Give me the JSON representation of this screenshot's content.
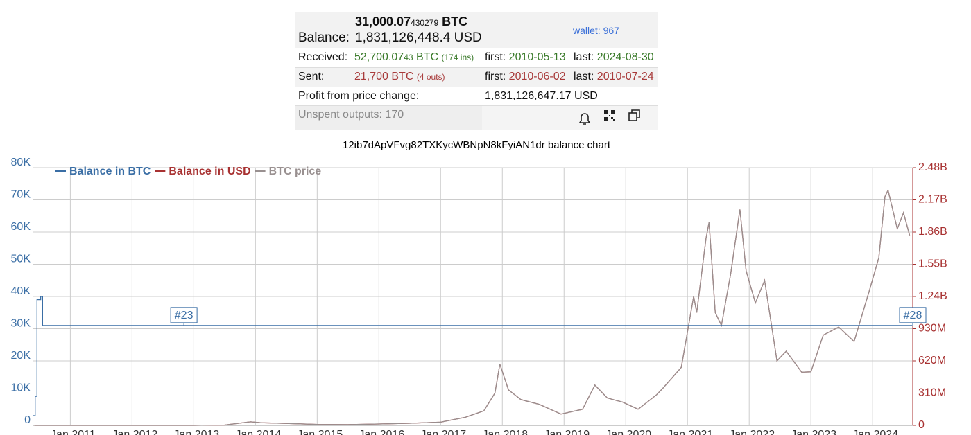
{
  "panel": {
    "balance_btc": "31,000.07",
    "balance_btc_small": "430279",
    "balance_btc_unit": "BTC",
    "balance_label": "Balance:",
    "balance_usd": "1,831,126,448.4 USD",
    "wallet": "wallet: 967",
    "received_label": "Received:",
    "received_btc": "52,700.07",
    "received_btc_small": "43",
    "received_btc_unit": "BTC",
    "received_ins": "(174 ins)",
    "received_first_label": "first:",
    "received_first": "2010-05-13",
    "received_last_label": "last:",
    "received_last": "2024-08-30",
    "sent_label": "Sent:",
    "sent_btc": "21,700 BTC",
    "sent_outs": "(4 outs)",
    "sent_first_label": "first:",
    "sent_first": "2010-06-02",
    "sent_last_label": "last:",
    "sent_last": "2010-07-24",
    "profit_label": "Profit from price change:",
    "profit_value": "1,831,126,647.17 USD",
    "unspent": "Unspent outputs: 170"
  },
  "chart_data": {
    "type": "line",
    "title": "12ib7dApVFvg82TXKycWBNpN8kFyiAN1dr balance chart",
    "xlim": [
      2010.4,
      2024.65
    ],
    "xticks": [
      {
        "value": 2011,
        "label": "Jan 2011"
      },
      {
        "value": 2012,
        "label": "Jan 2012"
      },
      {
        "value": 2013,
        "label": "Jan 2013"
      },
      {
        "value": 2014,
        "label": "Jan 2014"
      },
      {
        "value": 2015,
        "label": "Jan 2015"
      },
      {
        "value": 2016,
        "label": "Jan 2016"
      },
      {
        "value": 2017,
        "label": "Jan 2017"
      },
      {
        "value": 2018,
        "label": "Jan 2018"
      },
      {
        "value": 2019,
        "label": "Jan 2019"
      },
      {
        "value": 2020,
        "label": "Jan 2020"
      },
      {
        "value": 2021,
        "label": "Jan 2021"
      },
      {
        "value": 2022,
        "label": "Jan 2022"
      },
      {
        "value": 2023,
        "label": "Jan 2023"
      },
      {
        "value": 2024,
        "label": "Jan 2024"
      }
    ],
    "ylim": [
      0,
      80000
    ],
    "yticks": [
      0,
      {
        "value": 10000,
        "label": "10K"
      },
      {
        "value": 20000,
        "label": "20K"
      },
      {
        "value": 30000,
        "label": "30K"
      },
      {
        "value": 40000,
        "label": "40K"
      },
      {
        "value": 50000,
        "label": "50K"
      },
      {
        "value": 60000,
        "label": "60K"
      },
      {
        "value": 70000,
        "label": "70K"
      },
      {
        "value": 80000,
        "label": "80K"
      }
    ],
    "y2lim": [
      0,
      2480000000
    ],
    "y2ticks": [
      0,
      {
        "value": 310000000,
        "label": "310M"
      },
      {
        "value": 620000000,
        "label": "620M"
      },
      {
        "value": 930000000,
        "label": "930M"
      },
      {
        "value": 1240000000,
        "label": "1.24B"
      },
      {
        "value": 1550000000,
        "label": "1.55B"
      },
      {
        "value": 1860000000,
        "label": "1.86B"
      },
      {
        "value": 2170000000,
        "label": "2.17B"
      },
      {
        "value": 2480000000,
        "label": "2.48B"
      }
    ],
    "grid": true,
    "series": [
      {
        "name": "Balance in BTC",
        "color": "#3a6ea5",
        "step": true,
        "x": [
          2010.4,
          2010.43,
          2010.46,
          2010.52,
          2010.55,
          2024.64
        ],
        "values": [
          3000,
          9000,
          39000,
          40000,
          31000,
          31000
        ]
      },
      {
        "name": "Balance in USD",
        "color": "#a83232",
        "axis": "y2",
        "x": [
          2010.42,
          2013.0,
          2013.5,
          2013.92,
          2014.1,
          2014.5,
          2015.0,
          2015.5,
          2016.0,
          2016.5,
          2017.0,
          2017.4,
          2017.7,
          2017.88,
          2017.96,
          2018.1,
          2018.3,
          2018.6,
          2018.95,
          2019.3,
          2019.5,
          2019.7,
          2019.95,
          2020.2,
          2020.5,
          2020.6,
          2020.9,
          2021.0,
          2021.1,
          2021.15,
          2021.3,
          2021.35,
          2021.45,
          2021.55,
          2021.7,
          2021.85,
          2021.95,
          2022.1,
          2022.25,
          2022.45,
          2022.6,
          2022.85,
          2023.0,
          2023.2,
          2023.45,
          2023.7,
          2023.95,
          2024.1,
          2024.2,
          2024.25,
          2024.4,
          2024.5,
          2024.6
        ],
        "values": [
          0,
          403000,
          3100000,
          34100000,
          24800000,
          18600000,
          9300000,
          7750000,
          13330000,
          20150000,
          31000000,
          77500000,
          139500000,
          310000000,
          589000000,
          341000000,
          248000000,
          201500000,
          108500000,
          155000000,
          387500000,
          263500000,
          223200000,
          155000000,
          294500000,
          356500000,
          558000000,
          899000000,
          1240000000,
          1085000000,
          1798000000,
          1953000000,
          1085000000,
          961000000,
          1457000000,
          2077000000,
          1488000000,
          1178000000,
          1395000000,
          620000000,
          713000000,
          511500000,
          514600000,
          868000000,
          945500000,
          806000000,
          1302000000,
          1612000000,
          2201000000,
          2263000000,
          1891000000,
          2046000000,
          1829000000
        ]
      },
      {
        "name": "BTC price",
        "color": "#999090",
        "x": [
          2010.42,
          2013.0,
          2013.5,
          2013.92,
          2014.1,
          2014.5,
          2015.0,
          2015.5,
          2016.0,
          2016.5,
          2017.0,
          2017.4,
          2017.7,
          2017.88,
          2017.96,
          2018.1,
          2018.3,
          2018.6,
          2018.95,
          2019.3,
          2019.5,
          2019.7,
          2019.95,
          2020.2,
          2020.5,
          2020.6,
          2020.9,
          2021.0,
          2021.1,
          2021.15,
          2021.3,
          2021.35,
          2021.45,
          2021.55,
          2021.7,
          2021.85,
          2021.95,
          2022.1,
          2022.25,
          2022.45,
          2022.6,
          2022.85,
          2023.0,
          2023.2,
          2023.45,
          2023.7,
          2023.95,
          2024.1,
          2024.2,
          2024.25,
          2024.4,
          2024.5,
          2024.6
        ],
        "values": [
          0,
          13,
          100,
          1100,
          800,
          600,
          300,
          250,
          430,
          650,
          1000,
          2500,
          4500,
          10000,
          19000,
          11000,
          8000,
          6500,
          3500,
          5000,
          12500,
          8500,
          7200,
          5000,
          9500,
          11500,
          18000,
          29000,
          40000,
          35000,
          58000,
          63000,
          35000,
          31000,
          47000,
          67000,
          48000,
          38000,
          45000,
          20000,
          23000,
          16500,
          16600,
          28000,
          30500,
          26000,
          42000,
          52000,
          71000,
          73000,
          61000,
          66000,
          59000
        ]
      }
    ],
    "annotations": [
      {
        "x": 2012.84,
        "label": "#23"
      },
      {
        "x": 2024.65,
        "label": "#28"
      }
    ]
  }
}
